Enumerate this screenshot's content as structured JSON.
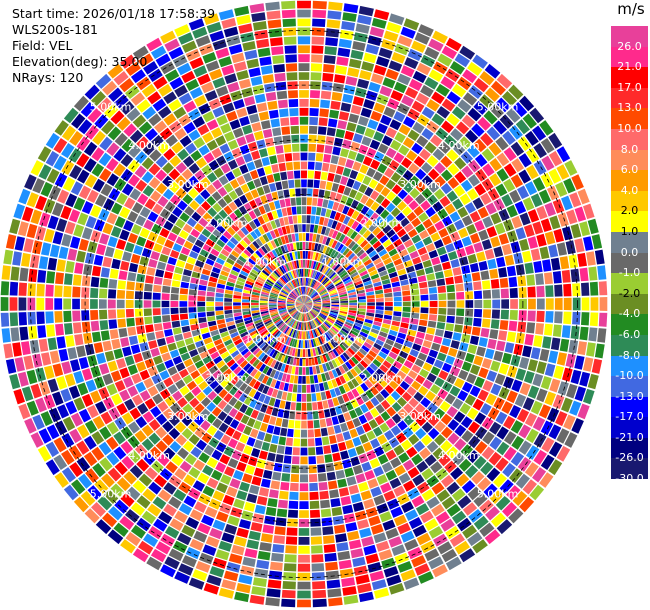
{
  "header": {
    "start_time": "Start time: 2026/01/18 17:58:39",
    "instrument": "WLS200s-181",
    "field": "Field: VEL",
    "elevation": "Elevation(deg): 35.00",
    "nrays": "NRays: 120"
  },
  "colorbar": {
    "unit": "m/s",
    "ticks": [
      "26.0",
      "21.0",
      "17.0",
      "13.0",
      "10.0",
      "8.0",
      "6.0",
      "4.0",
      "2.0",
      "1.0",
      "0.0",
      "-1.0",
      "-2.0",
      "-4.0",
      "-6.0",
      "-8.0",
      "-10.0",
      "-13.0",
      "-17.0",
      "-21.0",
      "-26.0",
      "-30.0"
    ],
    "colors": [
      "#e8409a",
      "#ff2a8c",
      "#ff0000",
      "#ff2a2a",
      "#ff4a00",
      "#ff6a6a",
      "#ff8c5a",
      "#ff9a00",
      "#ffc800",
      "#ffff00",
      "#708090",
      "#696969",
      "#9acd32",
      "#6b8e23",
      "#228b22",
      "#2e8b57",
      "#1e90ff",
      "#4169e1",
      "#0000ff",
      "#0000cd",
      "#000080",
      "#191970"
    ]
  },
  "chart_data": {
    "type": "heatmap",
    "projection": "polar PPI",
    "field": "VEL",
    "units": "m/s",
    "nrays": 120,
    "range_ring_labels": [
      "1.00km",
      "2.00km",
      "3.00km",
      "4.00km",
      "5.00km"
    ],
    "range_rings_km": [
      1,
      2,
      3,
      4,
      5
    ],
    "max_range_km": 5,
    "value_range": [
      -30.0,
      26.0
    ],
    "colorbar_boundaries": [
      26.0,
      21.0,
      17.0,
      13.0,
      10.0,
      8.0,
      6.0,
      4.0,
      2.0,
      1.0,
      0.0,
      -1.0,
      -2.0,
      -4.0,
      -6.0,
      -8.0,
      -10.0,
      -13.0,
      -17.0,
      -21.0,
      -26.0,
      -30.0
    ]
  }
}
